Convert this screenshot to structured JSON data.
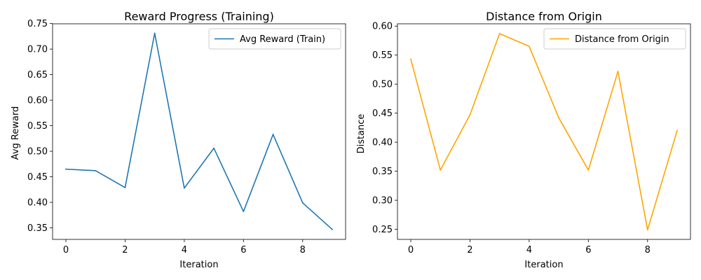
{
  "chart_data": [
    {
      "type": "line",
      "title": "Reward Progress (Training)",
      "xlabel": "Iteration",
      "ylabel": "Avg Reward",
      "x": [
        0,
        1,
        2,
        3,
        4,
        5,
        6,
        7,
        8,
        9
      ],
      "xlim": [
        -0.45,
        9.45
      ],
      "ylim": [
        0.3275,
        0.7495
      ],
      "xticks": [
        0,
        2,
        4,
        6,
        8
      ],
      "yticks": [
        0.35,
        0.4,
        0.45,
        0.5,
        0.55,
        0.6,
        0.65,
        0.7,
        0.75
      ],
      "xtick_labels": [
        "0",
        "2",
        "4",
        "6",
        "8"
      ],
      "ytick_labels": [
        "0.35",
        "0.40",
        "0.45",
        "0.50",
        "0.55",
        "0.60",
        "0.65",
        "0.70",
        "0.75"
      ],
      "grid": false,
      "legend": "top-right",
      "series": [
        {
          "name": "Avg Reward (Train)",
          "color": "#1f77b4",
          "values": [
            0.465,
            0.462,
            0.429,
            0.731,
            0.428,
            0.506,
            0.382,
            0.533,
            0.399,
            0.347
          ]
        }
      ]
    },
    {
      "type": "line",
      "title": "Distance from Origin",
      "xlabel": "Iteration",
      "ylabel": "Distance",
      "x": [
        0,
        1,
        2,
        3,
        4,
        5,
        6,
        7,
        8,
        9
      ],
      "xlim": [
        -0.45,
        9.45
      ],
      "ylim": [
        0.2326,
        0.6039
      ],
      "xticks": [
        0,
        2,
        4,
        6,
        8
      ],
      "yticks": [
        0.25,
        0.3,
        0.35,
        0.4,
        0.45,
        0.5,
        0.55,
        0.6
      ],
      "xtick_labels": [
        "0",
        "2",
        "4",
        "6",
        "8"
      ],
      "ytick_labels": [
        "0.25",
        "0.30",
        "0.35",
        "0.40",
        "0.45",
        "0.50",
        "0.55",
        "0.60"
      ],
      "grid": false,
      "legend": "top-right",
      "series": [
        {
          "name": "Distance from Origin",
          "color": "#ffa500",
          "values": [
            0.543,
            0.352,
            0.447,
            0.587,
            0.565,
            0.442,
            0.352,
            0.522,
            0.249,
            0.42
          ]
        }
      ]
    }
  ]
}
